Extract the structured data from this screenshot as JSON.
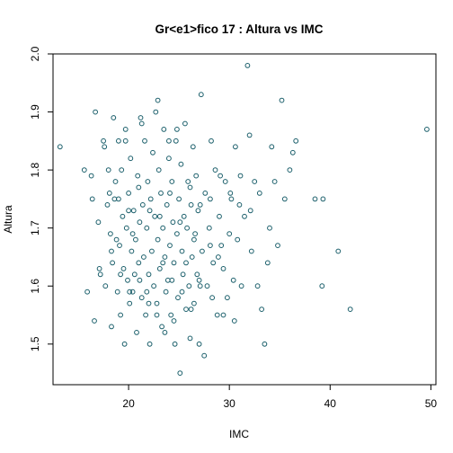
{
  "chart_data": {
    "type": "scatter",
    "title": "Gr<e1>fico 17 : Altura vs IMC",
    "xlabel": "IMC",
    "ylabel": "Altura",
    "xlim": [
      12.5,
      50.5
    ],
    "ylim": [
      1.43,
      2.0
    ],
    "xticks": [
      20,
      30,
      40,
      50
    ],
    "yticks": [
      1.5,
      1.6,
      1.7,
      1.8,
      1.9,
      2.0
    ],
    "grid": false,
    "legend": "none",
    "point_color": "#1b5f6b",
    "points": [
      [
        13.2,
        1.84
      ],
      [
        15.6,
        1.8
      ],
      [
        15.9,
        1.59
      ],
      [
        16.3,
        1.79
      ],
      [
        16.4,
        1.75
      ],
      [
        16.6,
        1.54
      ],
      [
        16.7,
        1.9
      ],
      [
        17.0,
        1.71
      ],
      [
        17.1,
        1.63
      ],
      [
        17.2,
        1.62
      ],
      [
        17.5,
        1.85
      ],
      [
        17.6,
        1.84
      ],
      [
        17.7,
        1.6
      ],
      [
        17.9,
        1.74
      ],
      [
        18.0,
        1.8
      ],
      [
        18.1,
        1.76
      ],
      [
        18.2,
        1.69
      ],
      [
        18.3,
        1.53
      ],
      [
        18.4,
        1.64
      ],
      [
        18.5,
        1.89
      ],
      [
        18.6,
        1.75
      ],
      [
        18.7,
        1.78
      ],
      [
        18.8,
        1.68
      ],
      [
        18.9,
        1.59
      ],
      [
        19.0,
        1.85
      ],
      [
        19.1,
        1.67
      ],
      [
        19.2,
        1.55
      ],
      [
        19.3,
        1.8
      ],
      [
        19.4,
        1.72
      ],
      [
        19.5,
        1.63
      ],
      [
        19.6,
        1.5
      ],
      [
        19.7,
        1.87
      ],
      [
        19.8,
        1.7
      ],
      [
        19.9,
        1.61
      ],
      [
        20.0,
        1.76
      ],
      [
        20.1,
        1.57
      ],
      [
        20.2,
        1.82
      ],
      [
        20.3,
        1.66
      ],
      [
        20.4,
        1.59
      ],
      [
        20.5,
        1.73
      ],
      [
        20.6,
        1.62
      ],
      [
        20.7,
        1.68
      ],
      [
        20.8,
        1.52
      ],
      [
        20.9,
        1.79
      ],
      [
        21.0,
        1.64
      ],
      [
        21.1,
        1.71
      ],
      [
        21.2,
        1.89
      ],
      [
        21.3,
        1.58
      ],
      [
        21.4,
        1.74
      ],
      [
        21.5,
        1.65
      ],
      [
        21.6,
        1.85
      ],
      [
        21.7,
        1.55
      ],
      [
        21.8,
        1.7
      ],
      [
        21.9,
        1.78
      ],
      [
        22.0,
        1.62
      ],
      [
        22.1,
        1.5
      ],
      [
        22.2,
        1.75
      ],
      [
        22.3,
        1.66
      ],
      [
        22.4,
        1.83
      ],
      [
        22.5,
        1.6
      ],
      [
        22.6,
        1.72
      ],
      [
        22.7,
        1.9
      ],
      [
        22.8,
        1.57
      ],
      [
        22.9,
        1.68
      ],
      [
        23.0,
        1.8
      ],
      [
        23.1,
        1.63
      ],
      [
        23.2,
        1.76
      ],
      [
        23.3,
        1.53
      ],
      [
        23.4,
        1.7
      ],
      [
        23.5,
        1.87
      ],
      [
        23.6,
        1.65
      ],
      [
        23.7,
        1.59
      ],
      [
        23.8,
        1.74
      ],
      [
        23.9,
        1.61
      ],
      [
        24.0,
        1.82
      ],
      [
        24.1,
        1.67
      ],
      [
        24.2,
        1.55
      ],
      [
        24.3,
        1.78
      ],
      [
        24.4,
        1.71
      ],
      [
        24.5,
        1.64
      ],
      [
        24.6,
        1.5
      ],
      [
        24.7,
        1.85
      ],
      [
        24.8,
        1.69
      ],
      [
        24.9,
        1.58
      ],
      [
        25.0,
        1.75
      ],
      [
        25.1,
        1.45
      ],
      [
        25.2,
        1.81
      ],
      [
        25.3,
        1.66
      ],
      [
        25.4,
        1.62
      ],
      [
        25.5,
        1.72
      ],
      [
        25.6,
        1.88
      ],
      [
        25.7,
        1.56
      ],
      [
        25.8,
        1.7
      ],
      [
        25.9,
        1.78
      ],
      [
        26.0,
        1.6
      ],
      [
        26.1,
        1.51
      ],
      [
        26.2,
        1.74
      ],
      [
        26.3,
        1.65
      ],
      [
        26.4,
        1.84
      ],
      [
        26.5,
        1.57
      ],
      [
        26.6,
        1.69
      ],
      [
        26.7,
        1.79
      ],
      [
        26.8,
        1.62
      ],
      [
        26.9,
        1.73
      ],
      [
        27.0,
        1.5
      ],
      [
        27.2,
        1.93
      ],
      [
        27.3,
        1.66
      ],
      [
        27.5,
        1.48
      ],
      [
        27.6,
        1.76
      ],
      [
        27.8,
        1.6
      ],
      [
        28.0,
        1.7
      ],
      [
        28.2,
        1.85
      ],
      [
        28.4,
        1.64
      ],
      [
        28.6,
        1.8
      ],
      [
        28.8,
        1.55
      ],
      [
        29.0,
        1.72
      ],
      [
        29.2,
        1.67
      ],
      [
        29.4,
        1.63
      ],
      [
        29.6,
        1.78
      ],
      [
        29.8,
        1.58
      ],
      [
        30.0,
        1.69
      ],
      [
        30.2,
        1.75
      ],
      [
        30.4,
        1.61
      ],
      [
        30.6,
        1.84
      ],
      [
        30.8,
        1.68
      ],
      [
        31.0,
        1.74
      ],
      [
        31.2,
        1.6
      ],
      [
        31.5,
        1.72
      ],
      [
        31.8,
        1.98
      ],
      [
        32.0,
        1.86
      ],
      [
        32.2,
        1.66
      ],
      [
        32.5,
        1.78
      ],
      [
        32.8,
        1.6
      ],
      [
        33.0,
        1.76
      ],
      [
        33.2,
        1.56
      ],
      [
        33.5,
        1.5
      ],
      [
        33.8,
        1.64
      ],
      [
        34.0,
        1.7
      ],
      [
        34.2,
        1.84
      ],
      [
        34.5,
        1.78
      ],
      [
        34.8,
        1.67
      ],
      [
        35.2,
        1.92
      ],
      [
        35.5,
        1.75
      ],
      [
        36.0,
        1.8
      ],
      [
        36.3,
        1.83
      ],
      [
        36.6,
        1.85
      ],
      [
        38.5,
        1.75
      ],
      [
        39.2,
        1.6
      ],
      [
        39.3,
        1.75
      ],
      [
        40.8,
        1.66
      ],
      [
        42.0,
        1.56
      ],
      [
        49.6,
        1.87
      ],
      [
        19.7,
        1.85
      ],
      [
        21.3,
        1.88
      ],
      [
        22.9,
        1.92
      ],
      [
        24.0,
        1.85
      ],
      [
        24.8,
        1.87
      ],
      [
        20.4,
        1.69
      ],
      [
        21.8,
        1.59
      ],
      [
        23.4,
        1.64
      ],
      [
        24.3,
        1.61
      ],
      [
        25.7,
        1.64
      ],
      [
        26.5,
        1.68
      ],
      [
        27.0,
        1.61
      ],
      [
        28.1,
        1.67
      ],
      [
        28.9,
        1.65
      ],
      [
        18.3,
        1.66
      ],
      [
        19.2,
        1.62
      ],
      [
        20.1,
        1.59
      ],
      [
        21.1,
        1.61
      ],
      [
        22.0,
        1.57
      ],
      [
        22.8,
        1.55
      ],
      [
        23.6,
        1.52
      ],
      [
        24.5,
        1.54
      ],
      [
        25.3,
        1.59
      ],
      [
        26.2,
        1.56
      ],
      [
        27.1,
        1.6
      ],
      [
        28.3,
        1.58
      ],
      [
        29.4,
        1.55
      ],
      [
        30.5,
        1.54
      ],
      [
        19.0,
        1.75
      ],
      [
        20.0,
        1.73
      ],
      [
        21.0,
        1.77
      ],
      [
        22.1,
        1.73
      ],
      [
        23.1,
        1.72
      ],
      [
        24.1,
        1.76
      ],
      [
        25.1,
        1.71
      ],
      [
        26.1,
        1.77
      ],
      [
        27.1,
        1.74
      ],
      [
        28.1,
        1.75
      ],
      [
        29.1,
        1.79
      ],
      [
        30.1,
        1.76
      ],
      [
        31.1,
        1.79
      ],
      [
        32.1,
        1.73
      ]
    ]
  }
}
